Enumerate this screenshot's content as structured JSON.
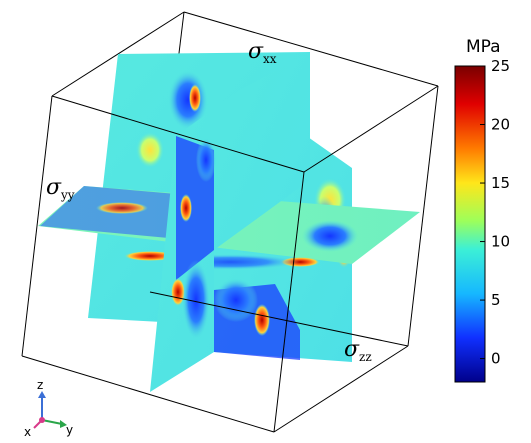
{
  "labels": {
    "xx": {
      "symbol": "σ",
      "sub": "xx"
    },
    "yy": {
      "symbol": "σ",
      "sub": "yy"
    },
    "zz": {
      "symbol": "σ",
      "sub": "zz"
    }
  },
  "colorbar": {
    "unit": "MPa",
    "min": -2,
    "max": 25,
    "ticks": [
      "25",
      "20",
      "15",
      "10",
      "5",
      "0"
    ],
    "colors": [
      "#8a0000",
      "#ff2a00",
      "#ffd21a",
      "#aaff50",
      "#3af0d6",
      "#1e5cff",
      "#00008a"
    ]
  },
  "axes": {
    "x": "x",
    "y": "y",
    "z": "z"
  },
  "palette": {
    "base": "#55e8df",
    "low": "#1a3cff",
    "high": "#ff3a10",
    "frame": "#000000"
  }
}
